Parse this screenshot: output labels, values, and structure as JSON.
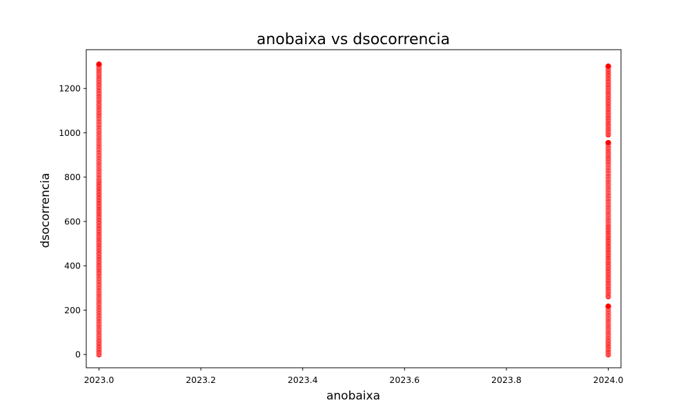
{
  "chart_data": {
    "type": "scatter",
    "title": "anobaixa vs dsocorrencia",
    "xlabel": "anobaixa",
    "ylabel": "dsocorrencia",
    "xlim": [
      2022.975,
      2024.025
    ],
    "ylim": [
      -60,
      1375
    ],
    "xticks": [
      2023.0,
      2023.2,
      2023.4,
      2023.6,
      2023.8,
      2024.0
    ],
    "xtick_labels": [
      "2023.0",
      "2023.2",
      "2023.4",
      "2023.6",
      "2023.8",
      "2024.0"
    ],
    "yticks": [
      0,
      200,
      400,
      600,
      800,
      1000,
      1200
    ],
    "ytick_labels": [
      "0",
      "200",
      "400",
      "600",
      "800",
      "1000",
      "1200"
    ],
    "grid": false,
    "marker_color": "#ff0000",
    "marker_edge_color": "#ffffff",
    "series": [
      {
        "x_value": 2023.0,
        "y_ranges": [
          [
            0,
            1310
          ]
        ]
      },
      {
        "x_value": 2024.0,
        "y_ranges": [
          [
            0,
            220
          ],
          [
            262,
            960
          ],
          [
            992,
            1300
          ]
        ]
      }
    ]
  }
}
